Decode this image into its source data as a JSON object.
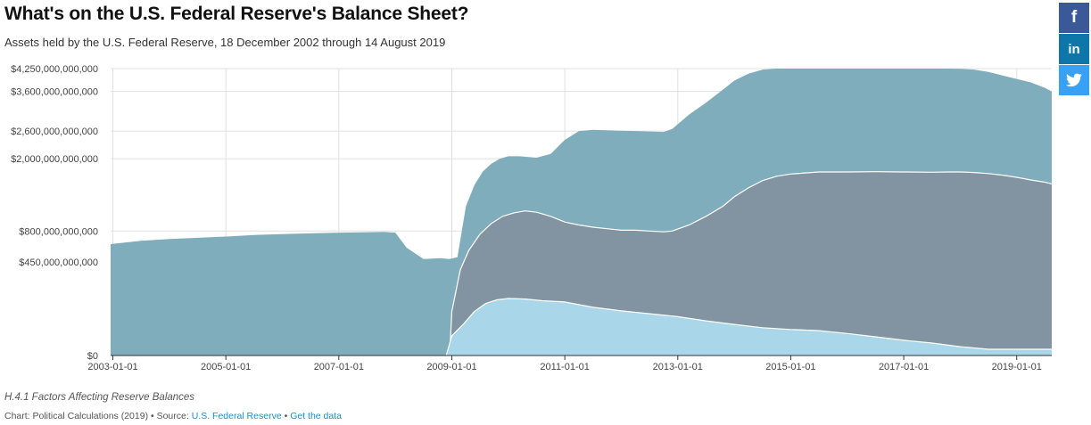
{
  "header": {
    "title": "What's on the U.S. Federal Reserve's Balance Sheet?",
    "subtitle": "Assets held by the U.S. Federal Reserve, 18 December 2002 through 14 August 2019"
  },
  "notes": "H.4.1 Factors Affecting Reserve Balances",
  "footer": {
    "chart_by": "Chart: Political Calculations (2019)",
    "separator": " • ",
    "source_prefix": "Source: ",
    "source_link": "U.S. Federal Reserve",
    "get_data": "Get the data"
  },
  "share": {
    "facebook_icon": "facebook-icon",
    "linkedin_icon": "linkedin-icon",
    "twitter_icon": "twitter-icon",
    "facebook_color": "#3b5998",
    "linkedin_color": "#0e76a8",
    "twitter_color": "#38a1f3",
    "facebook_glyph": "f",
    "linkedin_glyph": "in"
  },
  "chart_data": {
    "type": "area",
    "x_ticks": [
      "2003-01-01",
      "2005-01-01",
      "2007-01-01",
      "2009-01-01",
      "2011-01-01",
      "2013-01-01",
      "2015-01-01",
      "2017-01-01",
      "2019-01-01"
    ],
    "y_ticks": [
      {
        "value": 0,
        "label": "$0"
      },
      {
        "value": 450000000000,
        "label": "$450,000,000,000"
      },
      {
        "value": 800000000000,
        "label": "$800,000,000,000"
      },
      {
        "value": 2000000000000,
        "label": "$2,000,000,000,000"
      },
      {
        "value": 2600000000000,
        "label": "$2,600,000,000,000"
      },
      {
        "value": 3600000000000,
        "label": "$3,600,000,000,000"
      },
      {
        "value": 4250000000000,
        "label": "$4,250,000,000,000"
      }
    ],
    "xlim": [
      2002.96,
      2019.62
    ],
    "ylim": [
      0,
      4250000000000
    ],
    "colors": {
      "total": "#80adbc",
      "mbs": "#8294a1",
      "agency": "#a9d6e8",
      "grid": "#e0e0e0",
      "axis": "#333333"
    },
    "series": [
      {
        "key": "total",
        "x": [
          2002.96,
          2003.5,
          2004.0,
          2004.5,
          2005.0,
          2005.5,
          2006.0,
          2006.5,
          2007.0,
          2007.5,
          2007.8,
          2008.0,
          2008.2,
          2008.5,
          2008.8,
          2008.95,
          2009.1,
          2009.25,
          2009.4,
          2009.55,
          2009.7,
          2009.85,
          2010.0,
          2010.2,
          2010.5,
          2010.75,
          2011.0,
          2011.25,
          2011.5,
          2011.75,
          2012.0,
          2012.25,
          2012.5,
          2012.75,
          2012.9,
          2013.2,
          2013.5,
          2013.8,
          2014.0,
          2014.25,
          2014.5,
          2014.75,
          2015.0,
          2015.5,
          2016.0,
          2016.5,
          2017.0,
          2017.5,
          2017.8,
          2018.0,
          2018.25,
          2018.5,
          2018.75,
          2019.0,
          2019.25,
          2019.5,
          2019.62
        ],
        "values": [
          640000000000.0,
          680000000000.0,
          700000000000.0,
          715000000000.0,
          730000000000.0,
          750000000000.0,
          760000000000.0,
          770000000000.0,
          780000000000.0,
          785000000000.0,
          790000000000.0,
          780000000000.0,
          600000000000.0,
          480000000000.0,
          490000000000.0,
          480000000000.0,
          500000000000.0,
          1150000000000.0,
          1500000000000.0,
          1750000000000.0,
          1900000000000.0,
          2000000000000.0,
          2050000000000.0,
          2050000000000.0,
          2020000000000.0,
          2100000000000.0,
          2400000000000.0,
          2600000000000.0,
          2630000000000.0,
          2620000000000.0,
          2610000000000.0,
          2600000000000.0,
          2590000000000.0,
          2580000000000.0,
          2650000000000.0,
          3000000000000.0,
          3300000000000.0,
          3650000000000.0,
          3900000000000.0,
          4100000000000.0,
          4220000000000.0,
          4250000000000.0,
          4250000000000.0,
          4250000000000.0,
          4250000000000.0,
          4250000000000.0,
          4250000000000.0,
          4250000000000.0,
          4250000000000.0,
          4245000000000.0,
          4220000000000.0,
          4150000000000.0,
          4050000000000.0,
          3950000000000.0,
          3850000000000.0,
          3700000000000.0,
          3600000000000.0
        ]
      },
      {
        "key": "mbs",
        "x": [
          2008.96,
          2009.0,
          2009.15,
          2009.3,
          2009.5,
          2009.7,
          2009.9,
          2010.1,
          2010.3,
          2010.5,
          2010.75,
          2011.0,
          2011.25,
          2011.5,
          2011.75,
          2012.0,
          2012.25,
          2012.5,
          2012.75,
          2012.9,
          2013.2,
          2013.5,
          2013.8,
          2014.0,
          2014.25,
          2014.5,
          2014.75,
          2015.0,
          2015.5,
          2016.0,
          2016.5,
          2017.0,
          2017.5,
          2017.8,
          2018.0,
          2018.25,
          2018.5,
          2018.75,
          2019.0,
          2019.25,
          2019.5,
          2019.62
        ],
        "values": [
          0,
          100000000000.0,
          380000000000.0,
          570000000000.0,
          760000000000.0,
          900000000000.0,
          1000000000000.0,
          1050000000000.0,
          1080000000000.0,
          1060000000000.0,
          1000000000000.0,
          920000000000.0,
          880000000000.0,
          850000000000.0,
          830000000000.0,
          810000000000.0,
          810000000000.0,
          800000000000.0,
          790000000000.0,
          800000000000.0,
          880000000000.0,
          1000000000000.0,
          1150000000000.0,
          1300000000000.0,
          1450000000000.0,
          1580000000000.0,
          1660000000000.0,
          1700000000000.0,
          1740000000000.0,
          1740000000000.0,
          1745000000000.0,
          1740000000000.0,
          1735000000000.0,
          1740000000000.0,
          1740000000000.0,
          1730000000000.0,
          1710000000000.0,
          1680000000000.0,
          1640000000000.0,
          1590000000000.0,
          1550000000000.0,
          1520000000000.0
        ]
      },
      {
        "key": "agency",
        "x": [
          2008.9,
          2009.0,
          2009.2,
          2009.4,
          2009.6,
          2009.8,
          2010.0,
          2010.3,
          2010.6,
          2011.0,
          2011.5,
          2012.0,
          2012.5,
          2013.0,
          2013.5,
          2014.0,
          2014.5,
          2015.0,
          2015.5,
          2016.0,
          2016.5,
          2017.0,
          2017.5,
          2018.0,
          2018.5,
          2019.0,
          2019.62
        ],
        "values": [
          0,
          20000000000.0,
          50000000000.0,
          100000000000.0,
          140000000000.0,
          160000000000.0,
          168000000000.0,
          165000000000.0,
          155000000000.0,
          148000000000.0,
          120000000000.0,
          103000000000.0,
          90000000000.0,
          78000000000.0,
          62000000000.0,
          50000000000.0,
          40000000000.0,
          35000000000.0,
          32000000000.0,
          25000000000.0,
          18000000000.0,
          12000000000.0,
          8000000000.0,
          4000000000.0,
          2000000000.0,
          2000000000.0,
          2000000000.0
        ]
      }
    ]
  }
}
